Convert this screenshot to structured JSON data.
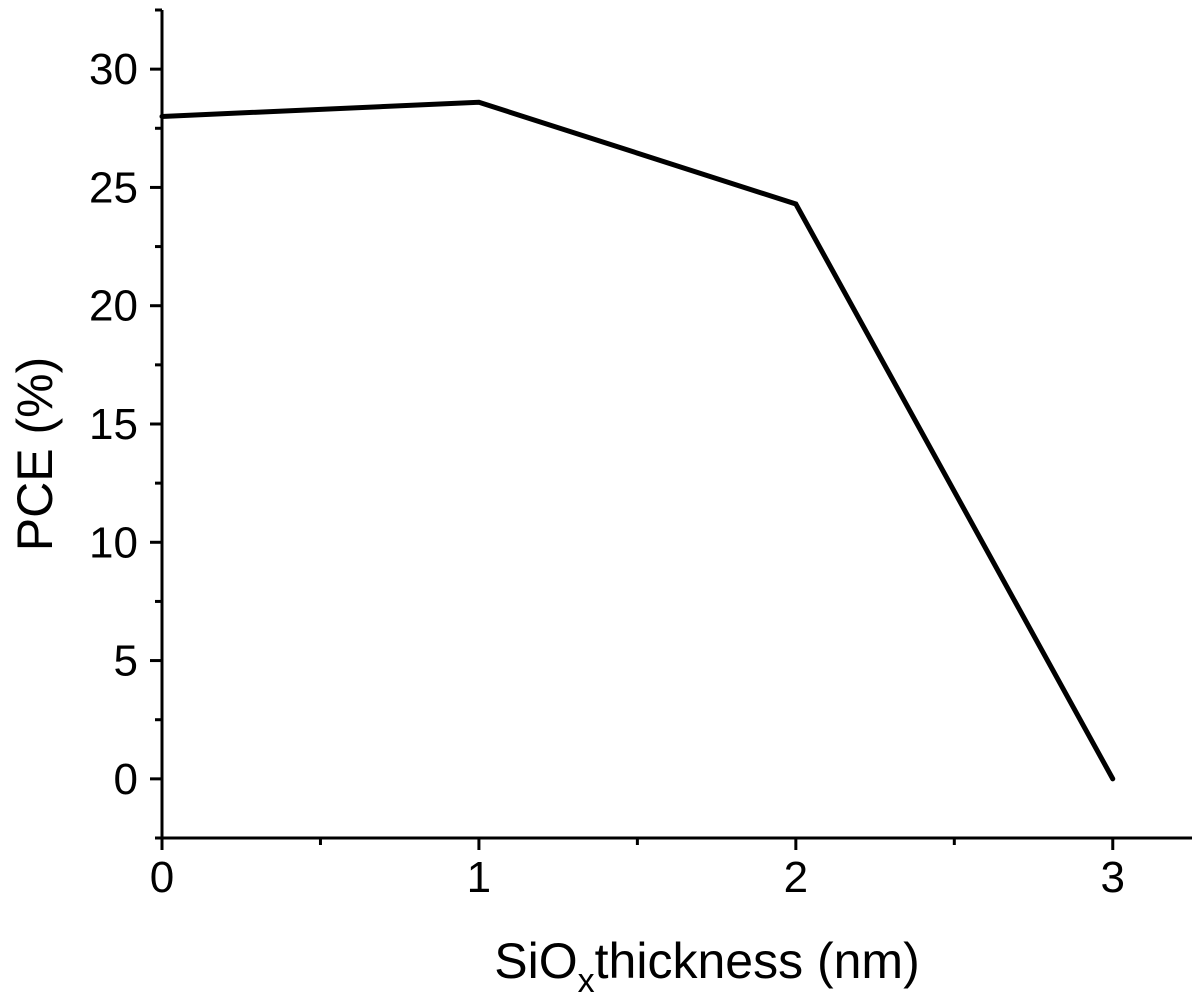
{
  "chart_data": {
    "type": "line",
    "title": "",
    "xlabel": {
      "main": "SiO",
      "subscript": "x",
      "rest": "thickness (nm)"
    },
    "ylabel": "PCE (%)",
    "x": [
      0,
      1,
      2,
      3
    ],
    "series": [
      {
        "values": [
          28.0,
          28.6,
          24.3,
          0.0
        ]
      }
    ],
    "xlim": [
      0,
      3.25
    ],
    "ylim": [
      -2.5,
      32.5
    ],
    "xticks": [
      0,
      1,
      2,
      3
    ],
    "xtick_labels": [
      "0",
      "1",
      "2",
      "3"
    ],
    "yticks": [
      0,
      5,
      10,
      15,
      20,
      25,
      30
    ],
    "ytick_labels": [
      "0",
      "5",
      "10",
      "15",
      "20",
      "25",
      "30"
    ],
    "x_minor_ticks": [
      0.5,
      1.5,
      2.5
    ],
    "y_minor_ticks": [
      -2.5,
      2.5,
      7.5,
      12.5,
      17.5,
      22.5,
      27.5,
      32.5
    ],
    "grid": false,
    "legend": "none",
    "colors": {
      "line": "#000000",
      "axis": "#000000",
      "background": "#ffffff"
    }
  }
}
